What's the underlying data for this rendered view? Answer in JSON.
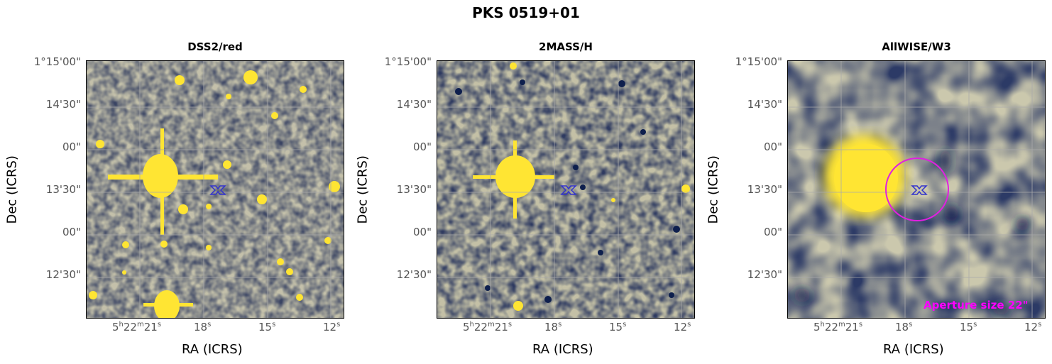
{
  "title": "PKS 0519+01",
  "axes": {
    "xlabel": "RA (ICRS)",
    "ylabel": "Dec (ICRS)"
  },
  "yticks": [
    "1°15'00\"",
    "14'30\"",
    "00\"",
    "13'30\"",
    "00\"",
    "12'30\""
  ],
  "xticks": [
    {
      "h": "5",
      "m": "22",
      "s": "21",
      "full": true
    },
    {
      "s": "18",
      "full": false
    },
    {
      "s": "15",
      "full": false
    },
    {
      "s": "12",
      "full": false
    }
  ],
  "panels": [
    {
      "title": "DSS2/red",
      "aperture": false
    },
    {
      "title": "2MASS/H",
      "aperture": false
    },
    {
      "title": "AllWISE/W3",
      "aperture": true,
      "aperture_label": "Aperture size 22\""
    }
  ],
  "colors": {
    "yellow": "#ffe533",
    "navy": "#1a2a5c",
    "mid": "#7d7a5f",
    "grid": "#aaaaaa",
    "marker": "#3333cc",
    "aperture": "#ff00ff"
  }
}
